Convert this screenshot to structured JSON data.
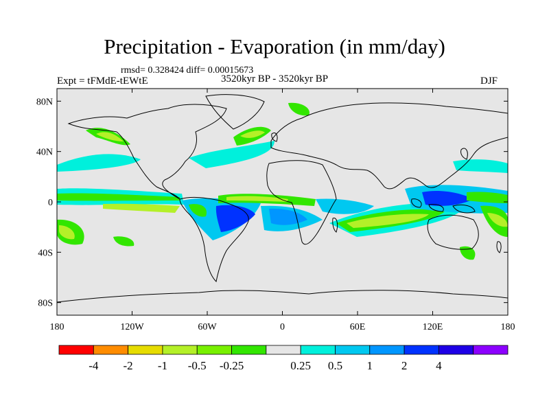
{
  "title": "Precipitation - Evaporation (in mm/day)",
  "stats": "rmsd= 0.328424 diff= 0.00015673",
  "experiment": "Expt = tFMdE-tEWtE",
  "period": "3520kyr BP - 3520kyr BP",
  "season": "DJF",
  "axes": {
    "lat_ticks": [
      {
        "label": "80N",
        "value": 80
      },
      {
        "label": "40N",
        "value": 40
      },
      {
        "label": "0",
        "value": 0
      },
      {
        "label": "40S",
        "value": -40
      },
      {
        "label": "80S",
        "value": -80
      }
    ],
    "lon_ticks": [
      {
        "label": "180",
        "value": -180
      },
      {
        "label": "120W",
        "value": -120
      },
      {
        "label": "60W",
        "value": -60
      },
      {
        "label": "0",
        "value": 0
      },
      {
        "label": "60E",
        "value": 60
      },
      {
        "label": "120E",
        "value": 120
      },
      {
        "label": "180",
        "value": 180
      }
    ],
    "lat_range": [
      -90,
      90
    ],
    "lon_range": [
      -180,
      180
    ]
  },
  "colorbar": {
    "colors": [
      "#ff0000",
      "#ff8c00",
      "#e6dc00",
      "#b4f028",
      "#78f000",
      "#32e600",
      "#e6e6e6",
      "#00f0dc",
      "#00c8f0",
      "#0096ff",
      "#0032ff",
      "#1e00e6",
      "#8c00ff"
    ],
    "labels": [
      "-4",
      "-2",
      "-1",
      "-0.5",
      "-0.25",
      "0.25",
      "0.5",
      "1",
      "2",
      "4"
    ]
  },
  "colors": {
    "background": "#e6e6e6",
    "coast": "#000000"
  }
}
